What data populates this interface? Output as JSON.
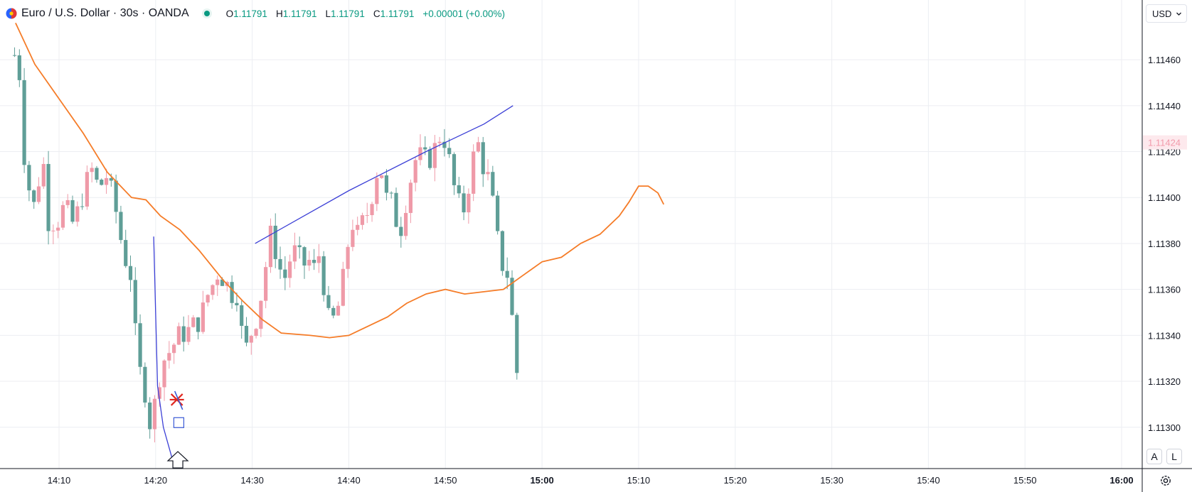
{
  "legend": {
    "symbol": "Euro / U.S. Dollar · 30s · OANDA",
    "open_key": "O",
    "open": "1.11791",
    "high_key": "H",
    "high": "1.11791",
    "low_key": "L",
    "low": "1.11791",
    "close_key": "C",
    "close": "1.11791",
    "change": "+0.00001 (+0.00%)",
    "status_color": "#089981"
  },
  "toolbar": {
    "currency": "USD",
    "auto_label": "A",
    "log_label": "L"
  },
  "colors": {
    "up": "#ef9aa8",
    "down": "#5f9e97",
    "ma": "#f57c28",
    "trend": "#3b3fd6",
    "grid": "#eceef2",
    "price_tag_bg": "#fde9ed",
    "price_tag_text": "#f29bab"
  },
  "chart_data": {
    "type": "candlestick",
    "symbol": "Euro / U.S. Dollar · 30s · OANDA",
    "y_axis": {
      "ticks": [
        "1.11300",
        "1.11320",
        "1.11340",
        "1.11360",
        "1.11380",
        "1.11400",
        "1.11420",
        "1.11440",
        "1.11460"
      ],
      "range": [
        1.11282,
        1.11486
      ]
    },
    "x_axis": {
      "ticks": [
        "14:10",
        "14:20",
        "14:30",
        "14:40",
        "14:50",
        "15:00",
        "15:10",
        "15:20",
        "15:30",
        "15:40",
        "15:50",
        "16:00"
      ],
      "bold_ticks": [
        "15:00",
        "16:00"
      ],
      "range_minutes": [
        -4.65,
        10.3
      ]
    },
    "current_price_label": "1.11424",
    "series": [
      {
        "name": "candles",
        "type": "candlestick",
        "anchors": [
          [
            -4.6,
            1.11462
          ],
          [
            -4.0,
            1.11452
          ],
          [
            -3.5,
            1.1141
          ],
          [
            -2.5,
            1.11395
          ],
          [
            -1.7,
            1.1142
          ],
          [
            -1.2,
            1.1139
          ],
          [
            -0.2,
            1.11389
          ],
          [
            0.6,
            1.11397
          ],
          [
            1.5,
            1.11388
          ],
          [
            2.6,
            1.11403
          ],
          [
            3.3,
            1.11413
          ],
          [
            4.1,
            1.11404
          ],
          [
            5.0,
            1.1141
          ],
          [
            6.0,
            1.11392
          ],
          [
            6.6,
            1.11377
          ],
          [
            7.1,
            1.1137
          ],
          [
            7.6,
            1.11364
          ],
          [
            8.1,
            1.11325
          ],
          [
            8.6,
            1.11323
          ],
          [
            9.0,
            1.11313
          ],
          [
            9.4,
            1.11302
          ],
          [
            9.8,
            1.11307
          ],
          [
            10.2,
            1.11319
          ],
          [
            10.8,
            1.11329
          ],
          [
            11.6,
            1.11334
          ],
          [
            12.4,
            1.1134
          ],
          [
            13.2,
            1.11341
          ],
          [
            14.0,
            1.11345
          ],
          [
            14.6,
            1.11346
          ],
          [
            15.2,
            1.11356
          ],
          [
            15.8,
            1.11361
          ],
          [
            16.4,
            1.11367
          ],
          [
            17.2,
            1.11364
          ],
          [
            17.8,
            1.11358
          ],
          [
            18.4,
            1.11358
          ],
          [
            19.2,
            1.11332
          ],
          [
            19.8,
            1.1134
          ],
          [
            20.4,
            1.11347
          ],
          [
            21.2,
            1.11363
          ],
          [
            21.8,
            1.11385
          ],
          [
            22.4,
            1.11377
          ],
          [
            23.0,
            1.11367
          ],
          [
            23.5,
            1.11365
          ],
          [
            24.0,
            1.11375
          ],
          [
            24.6,
            1.11377
          ],
          [
            25.2,
            1.1137
          ],
          [
            25.8,
            1.11373
          ],
          [
            26.4,
            1.11369
          ],
          [
            26.9,
            1.11375
          ],
          [
            27.4,
            1.11362
          ],
          [
            28.0,
            1.11344
          ],
          [
            28.7,
            1.11349
          ],
          [
            29.2,
            1.11358
          ],
          [
            29.8,
            1.11377
          ],
          [
            30.3,
            1.1139
          ],
          [
            30.8,
            1.11383
          ],
          [
            31.4,
            1.11389
          ],
          [
            32.0,
            1.11394
          ],
          [
            32.6,
            1.11405
          ],
          [
            33.2,
            1.11417
          ],
          [
            33.8,
            1.114
          ],
          [
            34.4,
            1.11398
          ],
          [
            34.9,
            1.1139
          ],
          [
            35.4,
            1.11387
          ],
          [
            35.9,
            1.11398
          ],
          [
            36.5,
            1.1141
          ],
          [
            37.0,
            1.11418
          ],
          [
            37.6,
            1.11418
          ],
          [
            38.2,
            1.11415
          ],
          [
            38.8,
            1.11421
          ],
          [
            39.2,
            1.11423
          ],
          [
            39.6,
            1.1143
          ],
          [
            40.2,
            1.1142
          ],
          [
            40.6,
            1.11412
          ],
          [
            41.0,
            1.11402
          ],
          [
            41.5,
            1.11396
          ],
          [
            42.0,
            1.11395
          ],
          [
            42.5,
            1.11408
          ],
          [
            43.0,
            1.1142
          ],
          [
            43.4,
            1.11423
          ],
          [
            43.8,
            1.11414
          ],
          [
            44.2,
            1.11413
          ],
          [
            44.7,
            1.11402
          ],
          [
            45.2,
            1.1139
          ],
          [
            45.6,
            1.11373
          ],
          [
            46.1,
            1.11369
          ],
          [
            46.6,
            1.11365
          ],
          [
            47.0,
            1.11342
          ],
          [
            47.4,
            1.11324
          ],
          [
            47.8,
            1.1131
          ]
        ]
      },
      {
        "name": "MA",
        "type": "line",
        "points": [
          [
            -4.5,
            1.11476
          ],
          [
            -2.5,
            1.11458
          ],
          [
            0,
            1.11443
          ],
          [
            2.5,
            1.11428
          ],
          [
            5.0,
            1.11411
          ],
          [
            7.5,
            1.114
          ],
          [
            9.0,
            1.11399
          ],
          [
            10.5,
            1.11392
          ],
          [
            12.5,
            1.11386
          ],
          [
            14.5,
            1.11377
          ],
          [
            17.0,
            1.11364
          ],
          [
            19.0,
            1.11355
          ],
          [
            21.0,
            1.11347
          ],
          [
            23.0,
            1.11341
          ],
          [
            26.0,
            1.1134
          ],
          [
            28.0,
            1.11339
          ],
          [
            30.0,
            1.1134
          ],
          [
            32.0,
            1.11344
          ],
          [
            34.0,
            1.11348
          ],
          [
            36.0,
            1.11354
          ],
          [
            38.0,
            1.11358
          ],
          [
            40.0,
            1.1136
          ],
          [
            42.0,
            1.11358
          ],
          [
            44.0,
            1.11359
          ],
          [
            46.0,
            1.1136
          ],
          [
            48.0,
            1.11366
          ],
          [
            50.0,
            1.11372
          ],
          [
            52.0,
            1.11374
          ],
          [
            54.0,
            1.1138
          ],
          [
            56.0,
            1.11384
          ],
          [
            58.0,
            1.11392
          ],
          [
            59.0,
            1.11398
          ],
          [
            60.0,
            1.11405
          ],
          [
            61.0,
            1.11405
          ],
          [
            62.0,
            1.11402
          ],
          [
            62.6,
            1.11397
          ]
        ]
      },
      {
        "name": "trend-down",
        "type": "line",
        "points": [
          [
            9.8,
            1.11383
          ],
          [
            10.0,
            1.1135
          ],
          [
            10.2,
            1.11318
          ],
          [
            10.8,
            1.113
          ],
          [
            11.8,
            1.11285
          ]
        ]
      },
      {
        "name": "trend-up",
        "type": "line",
        "points": [
          [
            20.3,
            1.1138
          ],
          [
            30.0,
            1.11403
          ],
          [
            38.0,
            1.1142
          ],
          [
            44.0,
            1.11432
          ],
          [
            47.0,
            1.1144
          ]
        ]
      }
    ],
    "annotations": [
      {
        "type": "arrow-up",
        "x": 12.3,
        "y": 1.11286
      },
      {
        "type": "x-marker",
        "x": 12.2,
        "y": 1.11312,
        "color": "#e0261e"
      },
      {
        "type": "box-marker",
        "x": 12.4,
        "y": 1.11302,
        "color": "#3b5bd6"
      }
    ]
  }
}
